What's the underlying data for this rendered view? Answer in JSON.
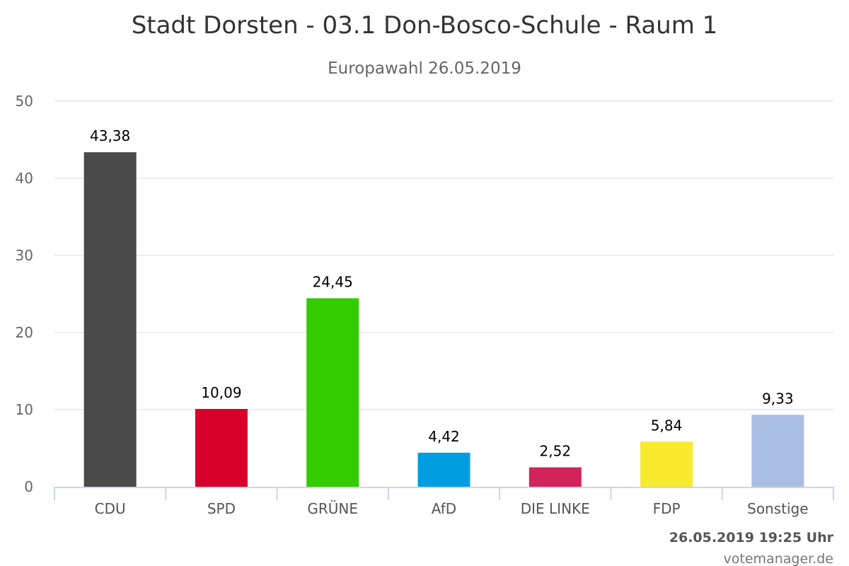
{
  "chart_data": {
    "type": "bar",
    "title": "Stadt Dorsten - 03.1 Don-Bosco-Schule - Raum 1",
    "subtitle": "Europawahl 26.05.2019",
    "categories": [
      "CDU",
      "SPD",
      "GRÜNE",
      "AfD",
      "DIE LINKE",
      "FDP",
      "Sonstige"
    ],
    "values": [
      43.38,
      10.09,
      24.45,
      4.42,
      2.52,
      5.84,
      9.33
    ],
    "value_labels": [
      "43,38",
      "10,09",
      "24,45",
      "4,42",
      "2,52",
      "5,84",
      "9,33"
    ],
    "colors": [
      "#4a4a4a",
      "#d7002a",
      "#33cc00",
      "#009ee0",
      "#d1245a",
      "#f9ea2d",
      "#aabde3"
    ],
    "ylim": [
      0,
      50
    ],
    "yticks": [
      0,
      10,
      20,
      30,
      40,
      50
    ],
    "xlabel": "",
    "ylabel": "",
    "grid": true,
    "legend": "none"
  },
  "credits": {
    "timestamp": "26.05.2019 19:25 Uhr",
    "source": "votemanager.de"
  }
}
